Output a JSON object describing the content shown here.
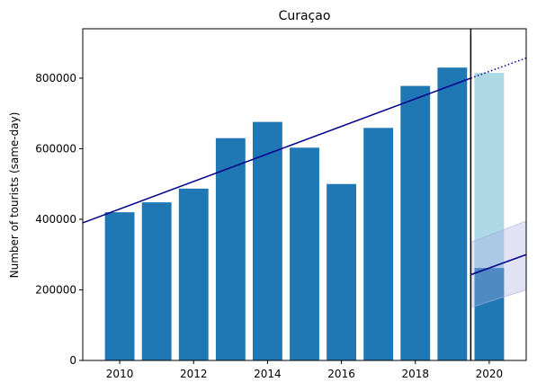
{
  "chart_data": {
    "type": "bar",
    "title": "Curaçao",
    "xlabel": "",
    "ylabel": "Number of tourists (same-day)",
    "xlim": [
      2009,
      2021
    ],
    "ylim": [
      0,
      940000
    ],
    "x_ticks": [
      "2010",
      "2012",
      "2014",
      "2016",
      "2018",
      "2020"
    ],
    "y_ticks": [
      "0",
      "200000",
      "400000",
      "600000",
      "800000"
    ],
    "grid": false,
    "colors": {
      "actual": "#1f77b4",
      "expected": "#add8e6",
      "trend": "#00008b",
      "band": "#a8aee0",
      "cutoff": "#000000"
    },
    "series": [
      {
        "x": [
          2010,
          2011,
          2012,
          2013,
          2014,
          2015,
          2016,
          2017,
          2018,
          2019
        ],
        "values": [
          420000,
          448000,
          487000,
          630000,
          676000,
          603000,
          500000,
          659000,
          778000,
          830000
        ]
      },
      {
        "x": [
          2020
        ],
        "values": [
          815000
        ]
      },
      {
        "x": [
          2020
        ],
        "values": [
          262000
        ]
      }
    ],
    "trend_pre": {
      "start": [
        2009,
        390000
      ],
      "end": [
        2019.5,
        800000
      ]
    },
    "trend_projection": {
      "start": [
        2019.5,
        800000
      ],
      "end": [
        2021,
        857000
      ]
    },
    "trend_post": {
      "start": [
        2019.5,
        243000
      ],
      "end": [
        2021,
        300000
      ]
    },
    "band_post": {
      "x": [
        2019.5,
        2021
      ],
      "lower": [
        150000,
        200000
      ],
      "upper": [
        335000,
        395000
      ]
    },
    "cutoff_x": 2019.5
  }
}
